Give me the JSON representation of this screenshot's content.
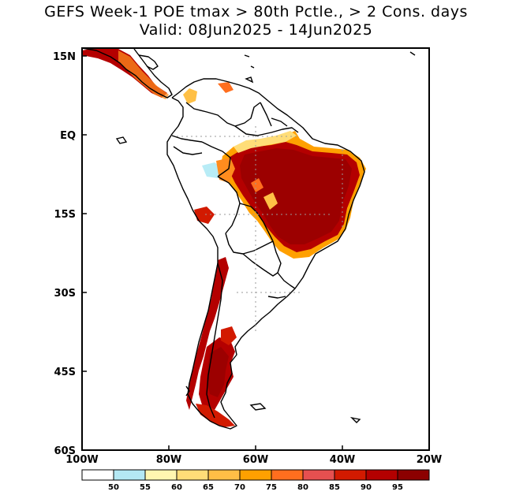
{
  "title_line1": "GEFS Week-1 POE tmax > 80th Pctle., > 2 Cons. days",
  "title_line2": "Valid: 08Jun2025 - 14Jun2025",
  "x_axis": {
    "ticks": [
      {
        "lon": -100,
        "label": "100W"
      },
      {
        "lon": -80,
        "label": "80W"
      },
      {
        "lon": -60,
        "label": "60W"
      },
      {
        "lon": -40,
        "label": "40W"
      },
      {
        "lon": -20,
        "label": "20W"
      }
    ]
  },
  "y_axis": {
    "ticks": [
      {
        "lat": 15,
        "label": "15N"
      },
      {
        "lat": 0,
        "label": "EQ"
      },
      {
        "lat": -15,
        "label": "15S"
      },
      {
        "lat": -30,
        "label": "30S"
      },
      {
        "lat": -45,
        "label": "45S"
      },
      {
        "lat": -60,
        "label": "60S"
      }
    ]
  },
  "extent": {
    "lon_min": -100,
    "lon_max": -20,
    "lat_min": -60,
    "lat_max": 16.5
  },
  "colorbar": {
    "labels": [
      "50",
      "55",
      "60",
      "65",
      "70",
      "75",
      "80",
      "85",
      "90",
      "95"
    ],
    "colors": [
      "#ffffff",
      "#b4e8f4",
      "#fff6b0",
      "#ffdd78",
      "#ffbe46",
      "#ffa000",
      "#ff6e1e",
      "#e65050",
      "#d21a00",
      "#b40000",
      "#8c0000"
    ]
  },
  "colors": {
    "land_outline": "#000000",
    "grid": "#9a9a9a",
    "extreme": "#9c0000",
    "very_high": "#c40000",
    "high": "#e22a00",
    "moderate": "#ff8c1e",
    "low": "#ffc046",
    "lowest": "#fff0a0",
    "cool": "#b8ecf6"
  }
}
